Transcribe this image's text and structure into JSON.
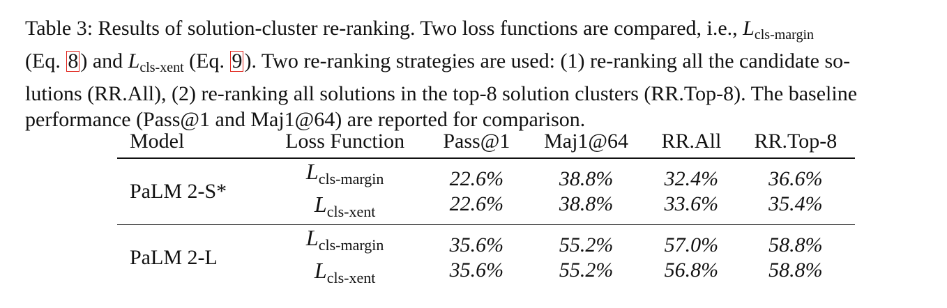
{
  "caption": {
    "line1_a": "Table 3:  Results of solution-cluster re-ranking.  Two loss functions are compared, i.e., ",
    "line1_L": "L",
    "line1_sub": "cls-margin",
    "line2_a": "(Eq. ",
    "line2_ref1": "8",
    "line2_b": ") and ",
    "line2_L": "L",
    "line2_sub": "cls-xent",
    "line2_c": " (Eq. ",
    "line2_ref2": "9",
    "line2_d": "). Two re-ranking strategies are used: (1) re-ranking all the candidate so-",
    "line3": "lutions (RR.All), (2) re-ranking all solutions in the top-8 solution clusters (RR.Top-8). The baseline",
    "line4": "performance (Pass@1 and Maj1@64) are reported for comparison."
  },
  "table": {
    "headers": [
      "Model",
      "Loss Function",
      "Pass@1",
      "Maj1@64",
      "RR.All",
      "RR.Top-8"
    ],
    "rows": [
      {
        "model": "PaLM 2-S*",
        "losses": [
          {
            "L": "L",
            "sub": "cls-margin"
          },
          {
            "L": "L",
            "sub": "cls-xent"
          }
        ],
        "pass1": [
          "22.6%",
          "22.6%"
        ],
        "maj64": [
          "38.8%",
          "38.8%"
        ],
        "rr_all": [
          "32.4%",
          "33.6%"
        ],
        "rr_top8": [
          "36.6%",
          "35.4%"
        ]
      },
      {
        "model": "PaLM 2-L",
        "losses": [
          {
            "L": "L",
            "sub": "cls-margin"
          },
          {
            "L": "L",
            "sub": "cls-xent"
          }
        ],
        "pass1": [
          "35.6%",
          "35.6%"
        ],
        "maj64": [
          "55.2%",
          "55.2%"
        ],
        "rr_all": [
          "57.0%",
          "56.8%"
        ],
        "rr_top8": [
          "58.8%",
          "58.8%"
        ]
      }
    ]
  },
  "colors": {
    "text": "#111111",
    "ref_box": "#e0241b"
  }
}
